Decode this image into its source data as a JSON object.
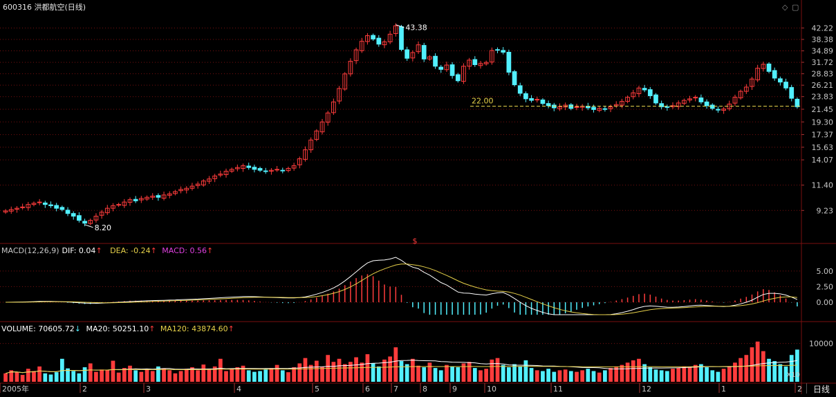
{
  "window": {
    "title": "600316 洪都航空(日线)",
    "controls": [
      "◇",
      "▢"
    ]
  },
  "tab_label": "日线",
  "signal_marker": "$",
  "x10_label": "X10",
  "colors": {
    "up": "#ff3c3c",
    "down": "#52f0ff",
    "dif": "#ffffff",
    "dea": "#e8d24a",
    "macd_text": "#e040e0",
    "ma20": "#ffffff",
    "ma120": "#e8d24a",
    "grid": "#7a1010"
  },
  "indicators": {
    "macd": {
      "name": "MACD(12,26,9)",
      "dif": "DIF: 0.04",
      "dea": "DEA: -0.24",
      "macd": "MACD: 0.56"
    },
    "volume": {
      "volume": "VOLUME: 70605.72",
      "ma20": "MA20: 50251.10",
      "ma120": "MA120: 43874.60"
    }
  },
  "chart_data": [
    {
      "type": "candlestick",
      "title": "600316 洪都航空(日线)",
      "y_ticks": [
        "42.22",
        "38.38",
        "34.89",
        "31.72",
        "28.83",
        "26.21",
        "23.83",
        "21.45",
        "19.30",
        "17.37",
        "15.63",
        "14.07",
        "11.40",
        "9.23"
      ],
      "x_ticks": [
        "2005年",
        "2",
        "3",
        "4",
        "5",
        "6",
        "7",
        "8",
        "9",
        "10",
        "11",
        "12",
        "1",
        "2"
      ],
      "annotations": [
        {
          "text": "43.38",
          "value": 43.38
        },
        {
          "text": "8.20",
          "value": 8.2
        },
        {
          "text": "22.00",
          "value": 22.0
        }
      ],
      "close_series": [
        9.2,
        9.3,
        9.4,
        9.5,
        9.7,
        9.8,
        9.9,
        9.7,
        9.6,
        9.4,
        9.3,
        9.0,
        8.8,
        8.5,
        8.3,
        8.5,
        8.8,
        9.1,
        9.4,
        9.6,
        9.7,
        9.9,
        10.1,
        10.0,
        10.2,
        10.3,
        10.4,
        10.3,
        10.5,
        10.6,
        10.8,
        11.0,
        11.1,
        11.3,
        11.5,
        11.8,
        12.0,
        12.3,
        12.5,
        12.8,
        13.0,
        13.2,
        13.4,
        13.2,
        13.0,
        12.9,
        12.8,
        12.9,
        13.0,
        12.9,
        13.1,
        13.4,
        14.2,
        15.3,
        16.6,
        17.9,
        19.3,
        20.8,
        22.8,
        25.5,
        28.8,
        32.0,
        35.2,
        37.8,
        39.6,
        38.5,
        36.9,
        37.6,
        40.1,
        43.0,
        35.3,
        32.8,
        34.4,
        36.7,
        32.6,
        33.2,
        30.7,
        29.9,
        31.0,
        28.4,
        27.2,
        30.7,
        32.3,
        31.1,
        31.4,
        31.7,
        35.0,
        35.2,
        34.5,
        29.2,
        26.3,
        24.5,
        23.4,
        23.1,
        23.3,
        22.5,
        22.1,
        21.7,
        21.9,
        22.2,
        21.6,
        21.9,
        22.0,
        21.7,
        21.4,
        21.6,
        21.5,
        21.9,
        22.3,
        22.9,
        23.7,
        24.6,
        25.6,
        25.2,
        24.0,
        22.6,
        21.9,
        21.8,
        22.1,
        22.6,
        23.1,
        23.4,
        23.7,
        22.8,
        22.1,
        21.6,
        21.3,
        21.5,
        22.4,
        23.7,
        24.9,
        25.8,
        27.6,
        30.2,
        31.2,
        29.4,
        27.8,
        26.9,
        25.6,
        23.5,
        21.9
      ],
      "y_axis": "log",
      "ylim": [
        7.6,
        47.5
      ]
    },
    {
      "type": "line+bar",
      "name": "MACD(12,26,9)",
      "y_ticks": [
        "5.00",
        "2.50",
        "0.00"
      ],
      "series": [
        {
          "name": "DIF",
          "last": 0.04
        },
        {
          "name": "DEA",
          "last": -0.24
        },
        {
          "name": "MACD",
          "last": 0.56
        }
      ]
    },
    {
      "type": "bar+line",
      "name": "VOLUME",
      "y_ticks": [
        "10000"
      ],
      "series": [
        {
          "name": "VOLUME",
          "last": 70605.72
        },
        {
          "name": "MA20",
          "last": 50251.1
        },
        {
          "name": "MA120",
          "last": 43874.6
        }
      ],
      "volume_series": [
        22,
        30,
        25,
        18,
        34,
        28,
        40,
        22,
        19,
        25,
        60,
        35,
        28,
        22,
        38,
        48,
        26,
        32,
        30,
        55,
        24,
        36,
        42,
        30,
        26,
        33,
        28,
        40,
        35,
        30,
        22,
        28,
        34,
        38,
        30,
        45,
        32,
        40,
        60,
        28,
        34,
        38,
        42,
        30,
        26,
        28,
        32,
        36,
        44,
        30,
        25,
        38,
        48,
        62,
        44,
        55,
        40,
        70,
        52,
        60,
        46,
        52,
        64,
        50,
        72,
        48,
        40,
        58,
        66,
        90,
        54,
        46,
        60,
        42,
        38,
        50,
        36,
        30,
        44,
        40,
        38,
        48,
        52,
        36,
        30,
        34,
        58,
        62,
        44,
        38,
        46,
        40,
        56,
        36,
        30,
        28,
        34,
        26,
        30,
        32,
        28,
        26,
        30,
        34,
        28,
        24,
        30,
        36,
        40,
        44,
        50,
        56,
        60,
        46,
        38,
        32,
        30,
        28,
        34,
        36,
        40,
        38,
        44,
        46,
        38,
        30,
        26,
        34,
        40,
        50,
        62,
        70,
        90,
        105,
        80,
        60,
        54,
        46,
        40,
        70,
        84
      ],
      "ylim": [
        0,
        130
      ]
    }
  ]
}
